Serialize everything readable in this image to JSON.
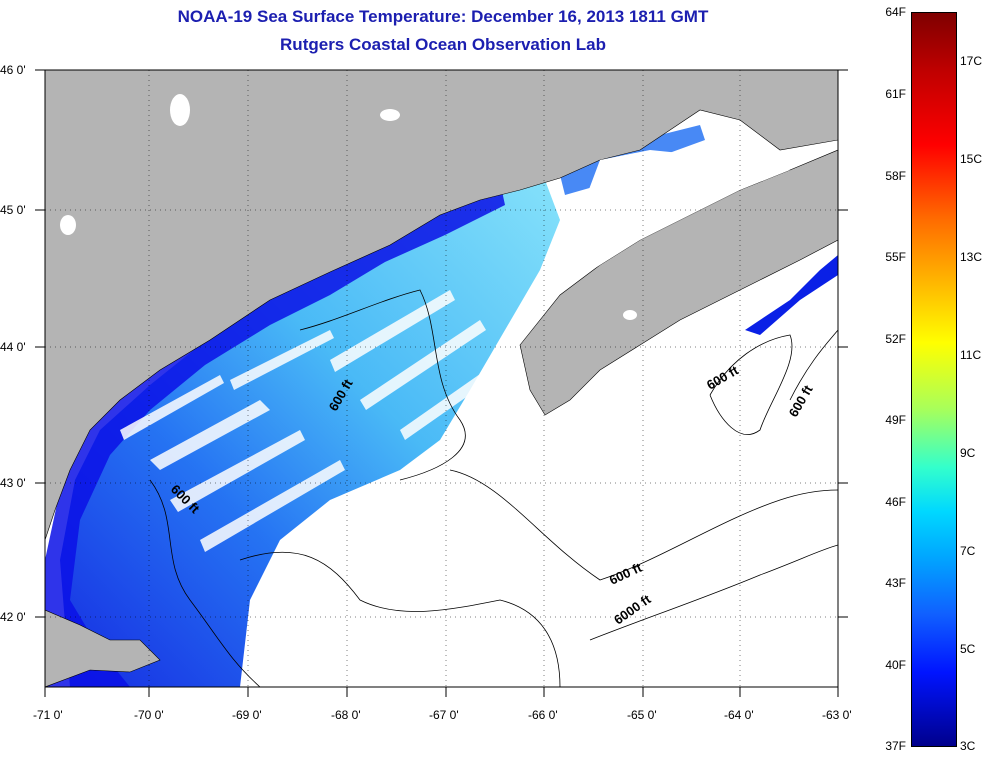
{
  "title": {
    "line1": "NOAA-19 Sea Surface Temperature:  December 16, 2013 1811 GMT",
    "line2": "Rutgers Coastal Ocean Observation Lab"
  },
  "axes": {
    "lon_labels": [
      "-71 0'",
      "-70 0'",
      "-69 0'",
      "-68 0'",
      "-67 0'",
      "-66 0'",
      "-65 0'",
      "-64 0'",
      "-63 0'"
    ],
    "lat_labels": [
      "46 0'",
      "45 0'",
      "44 0'",
      "43 0'",
      "42 0'"
    ],
    "lon_range": [
      -71,
      -63
    ],
    "lat_range": [
      41.5,
      46
    ]
  },
  "contours": {
    "label_600": "600 ft",
    "label_6000": "6000 ft"
  },
  "colorbar": {
    "fahrenheit": [
      "64F",
      "61F",
      "58F",
      "55F",
      "52F",
      "49F",
      "46F",
      "43F",
      "40F",
      "37F"
    ],
    "celsius": [
      "17C",
      "15C",
      "13C",
      "11C",
      "9C",
      "7C",
      "5C",
      "3C"
    ],
    "colors": {
      "max": "#7f0000",
      "mid_warm": "#ffff00",
      "mid_cool": "#00d8ff",
      "min": "#00008c"
    }
  },
  "colors": {
    "land": "#b4b4b4",
    "title": "#1c1fb0",
    "ocean_no_data": "#ffffff",
    "sst_cold": "#0a2cf0",
    "sst_cool": "#3aa0f5"
  }
}
